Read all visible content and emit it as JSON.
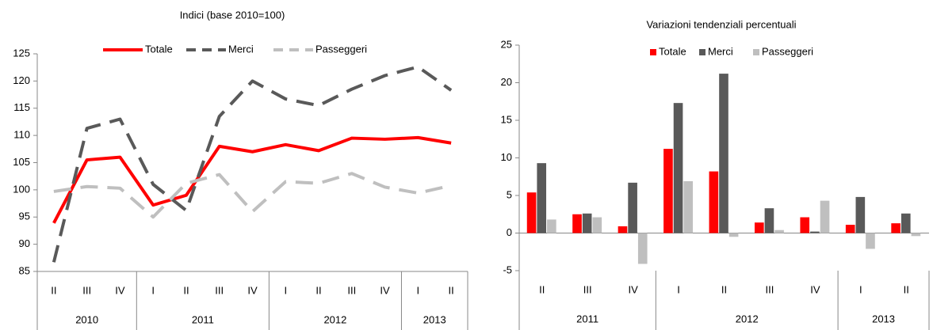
{
  "chart_data": [
    {
      "type": "line",
      "title": "Indici (base 2010=100)",
      "categories": [
        "II",
        "III",
        "IV",
        "I",
        "II",
        "III",
        "IV",
        "I",
        "II",
        "III",
        "IV",
        "I",
        "II"
      ],
      "groups": [
        {
          "label": "2010",
          "span": 3
        },
        {
          "label": "2011",
          "span": 4
        },
        {
          "label": "2012",
          "span": 4
        },
        {
          "label": "2013",
          "span": 2
        }
      ],
      "series": [
        {
          "name": "Totale",
          "color": "#ff0000",
          "dashed": false,
          "values": [
            93.9,
            105.5,
            106,
            97.2,
            99,
            108,
            107,
            108.3,
            107.2,
            109.5,
            109.3,
            109.6,
            108.6
          ]
        },
        {
          "name": "Merci",
          "color": "#595959",
          "dashed": true,
          "values": [
            86.7,
            111.3,
            113,
            101,
            96.2,
            113.5,
            120,
            116.7,
            115.5,
            118.5,
            121,
            122.6,
            118.3
          ]
        },
        {
          "name": "Passeggeri",
          "color": "#bfbfbf",
          "dashed": true,
          "values": [
            99.7,
            100.6,
            100.3,
            95,
            101.2,
            102.8,
            96,
            101.5,
            101.2,
            103,
            100.5,
            99.4,
            100.8
          ]
        }
      ],
      "ylim": [
        85,
        125
      ],
      "yticks": [
        85,
        90,
        95,
        100,
        105,
        110,
        115,
        120,
        125
      ],
      "legend": "top"
    },
    {
      "type": "bar",
      "title": "Variazioni tendenziali percentuali",
      "categories": [
        "II",
        "III",
        "IV",
        "I",
        "II",
        "III",
        "IV",
        "I",
        "II"
      ],
      "groups": [
        {
          "label": "2011",
          "span": 3
        },
        {
          "label": "2012",
          "span": 4
        },
        {
          "label": "2013",
          "span": 2
        }
      ],
      "series": [
        {
          "name": "Totale",
          "color": "#ff0000",
          "values": [
            5.4,
            2.5,
            0.9,
            11.2,
            8.2,
            1.4,
            2.1,
            1.1,
            1.3
          ]
        },
        {
          "name": "Merci",
          "color": "#595959",
          "values": [
            9.3,
            2.6,
            6.7,
            17.3,
            21.2,
            3.3,
            0.2,
            4.8,
            2.6
          ]
        },
        {
          "name": "Passeggeri",
          "color": "#bfbfbf",
          "values": [
            1.8,
            2.1,
            -4.1,
            6.9,
            -0.5,
            0.4,
            4.3,
            -2.1,
            -0.4
          ]
        }
      ],
      "ylim": [
        -5,
        25
      ],
      "yticks": [
        -5,
        0,
        5,
        10,
        15,
        20,
        25
      ],
      "legend": "top"
    }
  ]
}
